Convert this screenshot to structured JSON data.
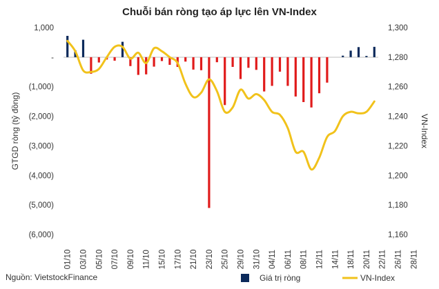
{
  "chart_data": {
    "type": "bar+line",
    "title": "Chuỗi bán ròng tạo áp lực lên VN-Index",
    "ylabel_left": "GTGD ròng (tỷ đồng)",
    "ylabel_right": "VN-Index",
    "source": "Nguồn: VietstockFinance",
    "left_axis": {
      "min": -6000,
      "max": 1000,
      "ticks": [
        1000,
        0,
        -1000,
        -2000,
        -3000,
        -4000,
        -5000,
        -6000
      ],
      "tick_labels": [
        "1,000",
        "-",
        "(1,000)",
        "(2,000)",
        "(3,000)",
        "(4,000)",
        "(5,000)",
        "(6,000)"
      ]
    },
    "right_axis": {
      "min": 1160,
      "max": 1300,
      "ticks": [
        1300,
        1280,
        1260,
        1240,
        1220,
        1200,
        1180,
        1160
      ],
      "tick_labels": [
        "1,300",
        "1,280",
        "1,260",
        "1,240",
        "1,220",
        "1,200",
        "1,180",
        "1,160"
      ]
    },
    "x_tick_labels": [
      "01/10",
      "03/10",
      "05/10",
      "07/10",
      "09/10",
      "11/10",
      "15/10",
      "17/10",
      "21/10",
      "23/10",
      "25/10",
      "29/10",
      "31/10",
      "04/11",
      "06/11",
      "08/11",
      "12/11",
      "14/11",
      "18/11",
      "20/11",
      "22/11",
      "26/11",
      "28/11"
    ],
    "grid": false,
    "legend": {
      "placement": "bottom-right"
    },
    "series": [
      {
        "name": "Giá trị ròng",
        "type": "bar",
        "color_positive": "#0c2a5b",
        "color_negative": "#e01b1b",
        "values": [
          720,
          230,
          590,
          -560,
          -180,
          -80,
          -120,
          520,
          -300,
          -600,
          -580,
          -320,
          -130,
          -260,
          -330,
          -150,
          -420,
          -440,
          -5100,
          -170,
          -1620,
          -330,
          -740,
          -360,
          -430,
          -1160,
          -970,
          -490,
          -970,
          -1330,
          -1520,
          -1700,
          -1220,
          -860,
          0,
          50,
          220,
          340,
          40,
          350
        ]
      },
      {
        "name": "VN-Index",
        "type": "line",
        "color": "#f1c21b",
        "values": [
          1291,
          1284,
          1271,
          1270,
          1272,
          1280,
          1287,
          1287,
          1279,
          1283,
          1276,
          1286,
          1284,
          1280,
          1276,
          1262,
          1253,
          1256,
          1265,
          1257,
          1243,
          1246,
          1258,
          1252,
          1255,
          1251,
          1243,
          1241,
          1232,
          1216,
          1216,
          1204,
          1212,
          1226,
          1230,
          1240,
          1243,
          1242,
          1243,
          1250
        ]
      }
    ]
  }
}
